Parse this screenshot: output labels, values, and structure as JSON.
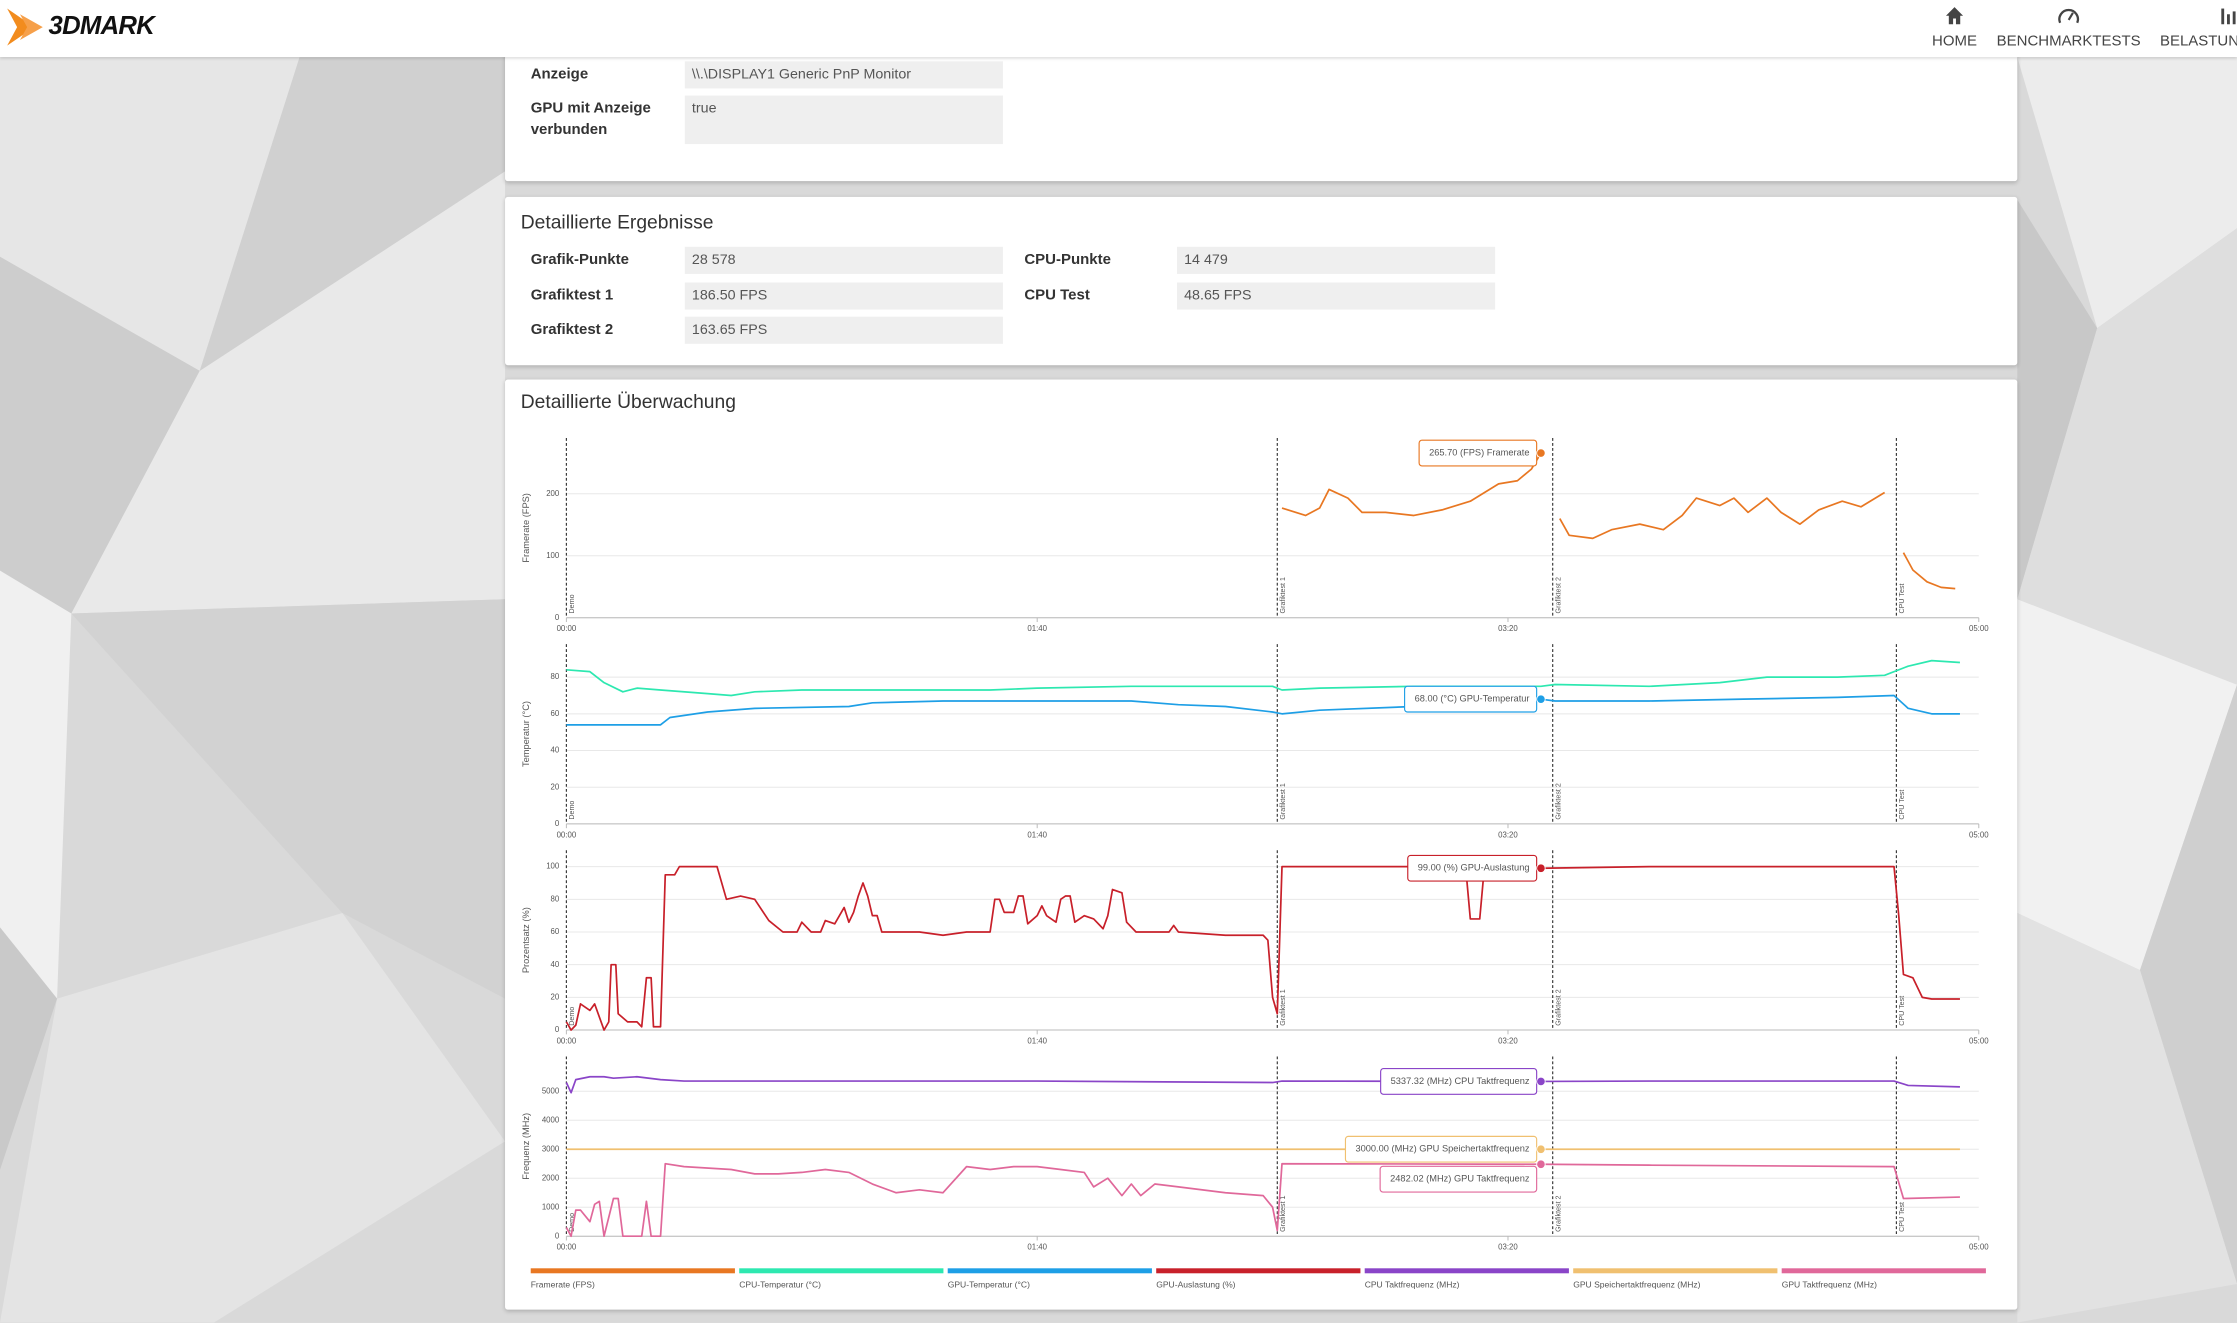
{
  "header": {
    "logo": "3DMARK",
    "nav": [
      "HOME",
      "BENCHMARKTESTS",
      "BELASTUNG"
    ]
  },
  "display": {
    "rows": [
      {
        "label": "Anzeige",
        "value": "\\\\.\\DISPLAY1 Generic PnP Monitor"
      },
      {
        "label": "GPU mit Anzeige verbunden",
        "value": "true"
      }
    ]
  },
  "results": {
    "title": "Detaillierte Ergebnisse",
    "left": [
      {
        "label": "Grafik-Punkte",
        "value": "28 578"
      },
      {
        "label": "Grafiktest 1",
        "value": "186.50 FPS"
      },
      {
        "label": "Grafiktest 2",
        "value": "163.65 FPS"
      }
    ],
    "right": [
      {
        "label": "CPU-Punkte",
        "value": "14 479"
      },
      {
        "label": "CPU Test",
        "value": "48.65 FPS"
      }
    ]
  },
  "monitoring": {
    "title": "Detaillierte Überwachung"
  },
  "chart_data": [
    {
      "type": "line",
      "y_label": "Framerate (FPS)",
      "xlim": [
        0,
        300
      ],
      "ylim": [
        0,
        290
      ],
      "yticks": [
        0,
        100,
        200
      ],
      "xticks": [
        {
          "value": 0,
          "label": "00:00"
        },
        {
          "value": 100,
          "label": "01:40"
        },
        {
          "value": 200,
          "label": "03:20"
        },
        {
          "value": 300,
          "label": "05:00"
        }
      ],
      "phases": [
        {
          "label": "Demo",
          "x": 0
        },
        {
          "label": "Grafiktest 1",
          "x": 151
        },
        {
          "label": "Grafiktest 2",
          "x": 209.5
        },
        {
          "label": "CPU Test",
          "x": 282.5
        }
      ],
      "cursor": 207,
      "grid": true,
      "series": [
        {
          "name": "Framerate (FPS)",
          "color": "#e87722",
          "tooltip": "265.70 (FPS) Framerate",
          "x": [
            152,
            157,
            160,
            162,
            166,
            169,
            174,
            180,
            186,
            192,
            198,
            202,
            205,
            207,
            null,
            211,
            213,
            218,
            222,
            228,
            233,
            237,
            240,
            245,
            248,
            251,
            255,
            258,
            262,
            266,
            271,
            275,
            280,
            null,
            284,
            286,
            289,
            292,
            295
          ],
          "values": [
            177,
            165,
            177,
            207,
            193,
            170,
            170,
            165,
            174,
            188,
            216,
            221,
            240,
            265.7,
            null,
            160,
            133,
            128,
            142,
            151,
            142,
            165,
            193,
            181,
            193,
            170,
            193,
            170,
            151,
            174,
            188,
            179,
            202,
            null,
            105,
            77,
            58,
            49,
            47
          ]
        }
      ]
    },
    {
      "type": "line",
      "y_label": "Temperatur (°C)",
      "xlim": [
        0,
        300
      ],
      "ylim": [
        0,
        98
      ],
      "yticks": [
        0,
        20,
        40,
        60,
        80
      ],
      "xticks": [
        {
          "value": 0,
          "label": "00:00"
        },
        {
          "value": 100,
          "label": "01:40"
        },
        {
          "value": 200,
          "label": "03:20"
        },
        {
          "value": 300,
          "label": "05:00"
        }
      ],
      "phases": [
        {
          "label": "Demo",
          "x": 0
        },
        {
          "label": "Grafiktest 1",
          "x": 151
        },
        {
          "label": "Grafiktest 2",
          "x": 209.5
        },
        {
          "label": "CPU Test",
          "x": 282.5
        }
      ],
      "cursor": 207,
      "grid": true,
      "series": [
        {
          "name": "CPU-Temperatur (°C)",
          "color": "#2de8b0",
          "x": [
            0,
            5,
            8,
            12,
            15,
            20,
            30,
            35,
            40,
            50,
            70,
            90,
            100,
            120,
            150,
            152,
            160,
            180,
            200,
            207,
            210,
            230,
            245,
            255,
            270,
            280,
            285,
            290,
            296
          ],
          "values": [
            84,
            83,
            77,
            72,
            74,
            73,
            71,
            70,
            72,
            73,
            73,
            73,
            74,
            75,
            75,
            73,
            74,
            75,
            75,
            75,
            76,
            75,
            77,
            80,
            80,
            81,
            86,
            89,
            88
          ]
        },
        {
          "name": "GPU-Temperatur (°C)",
          "color": "#1e9fe6",
          "tooltip": "68.00 (°C) GPU-Temperatur",
          "x": [
            0,
            20,
            22,
            30,
            40,
            60,
            65,
            80,
            100,
            120,
            130,
            140,
            150,
            152,
            160,
            180,
            200,
            207,
            210,
            230,
            250,
            270,
            282,
            285,
            290,
            296
          ],
          "values": [
            54,
            54,
            58,
            61,
            63,
            64,
            66,
            67,
            67,
            67,
            65,
            64,
            61,
            60,
            62,
            64,
            66,
            68,
            67,
            67,
            68,
            69,
            70,
            63,
            60,
            60
          ]
        }
      ]
    },
    {
      "type": "line",
      "y_label": "Prozentsatz (%)",
      "xlim": [
        0,
        300
      ],
      "ylim": [
        0,
        110
      ],
      "yticks": [
        0,
        20,
        40,
        60,
        80,
        100
      ],
      "xticks": [
        {
          "value": 0,
          "label": "00:00"
        },
        {
          "value": 100,
          "label": "01:40"
        },
        {
          "value": 200,
          "label": "03:20"
        },
        {
          "value": 300,
          "label": "05:00"
        }
      ],
      "phases": [
        {
          "label": "Demo",
          "x": 0
        },
        {
          "label": "Grafiktest 1",
          "x": 151
        },
        {
          "label": "Grafiktest 2",
          "x": 209.5
        },
        {
          "label": "CPU Test",
          "x": 282.5
        }
      ],
      "cursor": 207,
      "grid": true,
      "series": [
        {
          "name": "GPU-Auslastung (%)",
          "color": "#c8202a",
          "tooltip": "99.00 (%) GPU-Auslastung",
          "x": [
            0,
            1,
            2,
            3,
            4,
            5,
            6,
            8,
            9,
            9.5,
            10.5,
            11,
            13,
            15,
            16,
            17,
            18,
            18.5,
            20,
            21,
            23,
            24,
            32,
            34,
            37,
            40,
            43,
            46,
            49,
            50,
            52,
            54,
            55,
            57,
            59,
            60,
            61,
            62,
            63,
            64,
            65,
            66,
            67,
            75,
            80,
            85,
            90,
            91,
            92,
            93,
            95,
            96,
            97,
            98,
            100,
            101,
            102,
            104,
            105,
            106,
            107,
            108,
            110,
            112,
            114,
            115,
            116,
            118,
            119,
            121,
            128,
            129,
            130,
            140,
            148,
            149,
            150,
            151,
            152,
            191,
            192,
            194,
            195,
            207,
            230,
            282,
            283,
            284,
            286,
            288,
            290,
            296
          ],
          "values": [
            5,
            0,
            3,
            16,
            14,
            12,
            16,
            0,
            5,
            40,
            40,
            10,
            5,
            5,
            2,
            32,
            32,
            2,
            2,
            95,
            95,
            100,
            100,
            80,
            82,
            80,
            67,
            60,
            60,
            66,
            60,
            60,
            67,
            65,
            75,
            66,
            72,
            82,
            90,
            82,
            70,
            70,
            60,
            60,
            58,
            60,
            60,
            80,
            80,
            72,
            72,
            82,
            82,
            65,
            70,
            76,
            70,
            66,
            80,
            82,
            82,
            66,
            70,
            68,
            62,
            70,
            86,
            84,
            66,
            60,
            60,
            64,
            60,
            58,
            58,
            55,
            20,
            10,
            100,
            100,
            68,
            68,
            100,
            99,
            100,
            100,
            70,
            34,
            32,
            20,
            19,
            19
          ]
        }
      ]
    },
    {
      "type": "line",
      "y_label": "Frequenz (MHz)",
      "xlim": [
        0,
        300
      ],
      "ylim": [
        0,
        6200
      ],
      "yticks": [
        0,
        1000,
        2000,
        3000,
        4000,
        5000
      ],
      "xticks": [
        {
          "value": 0,
          "label": "00:00"
        },
        {
          "value": 100,
          "label": "01:40"
        },
        {
          "value": 200,
          "label": "03:20"
        },
        {
          "value": 300,
          "label": "05:00"
        }
      ],
      "phases": [
        {
          "label": "Demo",
          "x": 0
        },
        {
          "label": "Grafiktest 1",
          "x": 151
        },
        {
          "label": "Grafiktest 2",
          "x": 209.5
        },
        {
          "label": "CPU Test",
          "x": 282.5
        }
      ],
      "cursor": 207,
      "grid": true,
      "series": [
        {
          "name": "CPU Taktfrequenz (MHz)",
          "color": "#8a45c8",
          "tooltip": "5337.32 (MHz) CPU Taktfrequenz",
          "x": [
            0,
            1,
            2,
            5,
            8,
            10,
            15,
            20,
            25,
            50,
            100,
            150,
            152,
            207,
            230,
            270,
            282,
            285,
            296
          ],
          "values": [
            5300,
            4950,
            5400,
            5500,
            5500,
            5450,
            5500,
            5400,
            5350,
            5350,
            5350,
            5300,
            5350,
            5337.32,
            5350,
            5350,
            5350,
            5200,
            5150
          ]
        },
        {
          "name": "GPU Speichertaktfrequenz (MHz)",
          "color": "#f0c070",
          "tooltip": "3000.00 (MHz) GPU Speichertaktfrequenz",
          "x": [
            0,
            207,
            296
          ],
          "values": [
            3000,
            3000,
            3000
          ]
        },
        {
          "name": "GPU Taktfrequenz (MHz)",
          "color": "#e0689a",
          "tooltip": "2482.02 (MHz) GPU Taktfrequenz",
          "x": [
            0,
            1,
            2,
            3,
            5,
            6,
            7,
            8,
            10,
            11,
            12,
            16,
            17,
            18,
            20,
            21,
            25,
            35,
            40,
            45,
            50,
            55,
            60,
            65,
            70,
            75,
            80,
            85,
            90,
            95,
            100,
            105,
            110,
            112,
            115,
            118,
            120,
            122,
            125,
            130,
            140,
            148,
            150,
            151,
            152,
            207,
            230,
            282,
            284,
            296
          ],
          "values": [
            300,
            0,
            900,
            900,
            500,
            1100,
            1200,
            0,
            1300,
            1300,
            0,
            0,
            1200,
            0,
            0,
            2500,
            2400,
            2300,
            2150,
            2150,
            2200,
            2300,
            2200,
            1800,
            1500,
            1600,
            1500,
            2400,
            2300,
            2400,
            2400,
            2300,
            2200,
            1700,
            2000,
            1400,
            1800,
            1400,
            1800,
            1700,
            1500,
            1400,
            1000,
            200,
            2500,
            2482.02,
            2450,
            2400,
            1300,
            1350
          ]
        }
      ]
    }
  ]
}
